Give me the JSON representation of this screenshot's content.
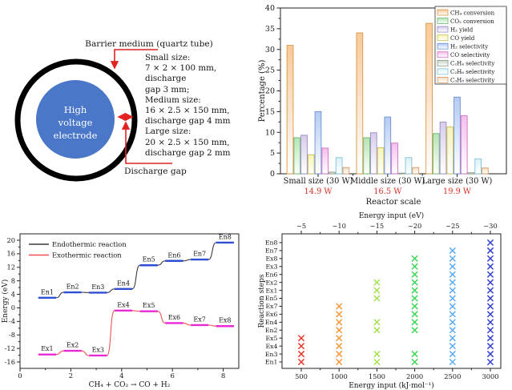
{
  "figure": {
    "background": "#ffffff",
    "annotation_red": "#e32222"
  },
  "diagram": {
    "barrier_label": "Barrier medium (quartz tube)",
    "electrode_lines": [
      "High",
      "voltage",
      "electrode"
    ],
    "discharge_label": "Discharge gap",
    "size_lines": [
      "Small size:",
      "7 × 2 × 100 mm, discharge",
      "gap 3 mm;",
      "Medium size:",
      "16 × 2.5 × 150 mm,",
      "discharge gap 4 mm",
      "Large size:",
      "20 × 2.5 × 150 mm,",
      "discharge gap 2 mm"
    ],
    "electrode_fill": "#4a77c7",
    "ring_color": "#000000",
    "arrow_color": "#e32222"
  },
  "chart_data": [
    {
      "id": "reactor-scale-bars",
      "type": "bar",
      "title": "",
      "ylabel": "Percentage (%)",
      "xlabel": "Reactor scale",
      "ylim": [
        0,
        40
      ],
      "yticks": [
        0,
        5,
        10,
        15,
        20,
        25,
        30,
        35,
        40
      ],
      "grid": false,
      "legend_position": "top-right",
      "categories": [
        "Small size (30 W)",
        "Middle size (30 W)",
        "Large size (30 W)"
      ],
      "category_power_labels": [
        "14.9 W",
        "16.5 W",
        "19.9 W"
      ],
      "power_label_color": "#d93025",
      "series": [
        {
          "name": "CH₄ conversion",
          "fill": "#f9c998",
          "edge": "#d99648",
          "values": [
            31.0,
            34.0,
            36.3
          ]
        },
        {
          "name": "CO₂ conversion",
          "fill": "#b5e3b6",
          "edge": "#6cb86e",
          "values": [
            8.7,
            8.7,
            9.7
          ]
        },
        {
          "name": "H₂ yield",
          "fill": "#d6cdea",
          "edge": "#9b8ac4",
          "values": [
            9.3,
            9.9,
            12.5
          ]
        },
        {
          "name": "CO yield",
          "fill": "#f8f4b5",
          "edge": "#c6bd55",
          "values": [
            4.6,
            6.3,
            11.3
          ]
        },
        {
          "name": "H₂ selectivity",
          "fill": "#b3cbf2",
          "edge": "#6a8fd2",
          "values": [
            15.0,
            13.7,
            18.5
          ]
        },
        {
          "name": "CO selectivity",
          "fill": "#f4bfec",
          "edge": "#cf6ec0",
          "values": [
            6.2,
            7.4,
            14.0
          ]
        },
        {
          "name": "C₂H₄ selectivity",
          "fill": "#c8d2c4",
          "edge": "#8a9a86",
          "values": [
            0.4,
            0.15,
            0.25
          ]
        },
        {
          "name": "C₂H₆ selectivity",
          "fill": "#dbf1f7",
          "edge": "#7fc2d4",
          "values": [
            3.9,
            3.9,
            3.6
          ]
        },
        {
          "name": "C₃H₈ selectivity",
          "fill": "#f8dcc2",
          "edge": "#d89a62",
          "values": [
            1.5,
            1.5,
            1.4
          ]
        }
      ]
    },
    {
      "id": "energy-steps",
      "type": "line",
      "ylabel": "Energy (eV)",
      "xlabel": "CH₄ + CO₂ → CO + H₂",
      "ylim": [
        -17.9,
        21.9
      ],
      "yticks": [
        -16,
        -12,
        -8,
        -4,
        0,
        4,
        8,
        12,
        16,
        20
      ],
      "xticks": [
        0,
        2,
        4,
        6,
        8
      ],
      "grid": false,
      "legend_position": "top-left",
      "series": [
        {
          "name": "Endothermic reaction",
          "line_color": "#3c3c3c",
          "plateau_color": "#2e4fd4",
          "steps": [
            {
              "label": "En1",
              "level": 3.0
            },
            {
              "label": "En2",
              "level": 4.6
            },
            {
              "label": "En3",
              "level": 4.5
            },
            {
              "label": "En4",
              "level": 5.6
            },
            {
              "label": "En5",
              "level": 12.6
            },
            {
              "label": "En6",
              "level": 13.9
            },
            {
              "label": "En7",
              "level": 14.3
            },
            {
              "label": "En8",
              "level": 19.3
            }
          ]
        },
        {
          "name": "Exothermic reaction",
          "line_color": "#f25050",
          "plateau_color": "#e829d8",
          "steps": [
            {
              "label": "Ex1",
              "level": -13.8
            },
            {
              "label": "Ex2",
              "level": -12.7
            },
            {
              "label": "Ex3",
              "level": -14.1
            },
            {
              "label": "Ex4",
              "level": -0.8
            },
            {
              "label": "Ex5",
              "level": -1.0
            },
            {
              "label": "Ex6",
              "level": -4.5
            },
            {
              "label": "Ex7",
              "level": -5.1
            },
            {
              "label": "Ex8",
              "level": -5.4
            }
          ]
        }
      ]
    },
    {
      "id": "energy-input-map",
      "type": "scatter",
      "ylabel": "Reaction steps",
      "xlabel_bottom": "Energy input (kJ·mol⁻¹)",
      "xlabel_top": "Energy input (eV)",
      "xticks_bottom": [
        500,
        1000,
        1500,
        2000,
        2500,
        3000
      ],
      "xticks_top": [
        "~5",
        "~10",
        "~15",
        "~20",
        "~25",
        "~30"
      ],
      "y_categories": [
        "En1",
        "En3",
        "Ex4",
        "Ex5",
        "En2",
        "En4",
        "Ex6",
        "Ex7",
        "En5",
        "Ex1",
        "Ex2",
        "En6",
        "Ex3",
        "Ex8",
        "En7",
        "En8"
      ],
      "marker": "x",
      "columns": [
        {
          "x": 500,
          "color": "#e23a2b",
          "steps": [
            "En1",
            "En3",
            "Ex4",
            "Ex5"
          ]
        },
        {
          "x": 1000,
          "color": "#f29a3d",
          "steps": [
            "En1",
            "En3",
            "Ex4",
            "Ex5",
            "En2",
            "En4",
            "Ex6",
            "Ex7"
          ]
        },
        {
          "x": 1500,
          "color": "#a6e052",
          "steps": [
            "En1",
            "En3",
            "En2",
            "En4",
            "En5",
            "Ex1",
            "Ex2"
          ]
        },
        {
          "x": 2000,
          "color": "#3ed658",
          "steps": [
            "En1",
            "En3",
            "En2",
            "En4",
            "Ex6",
            "Ex7",
            "En5",
            "Ex1",
            "Ex2",
            "En6",
            "Ex3",
            "Ex8"
          ]
        },
        {
          "x": 2500,
          "color": "#5cacf2",
          "steps": [
            "En1",
            "En3",
            "Ex4",
            "Ex5",
            "En2",
            "En4",
            "Ex6",
            "Ex7",
            "En5",
            "Ex1",
            "Ex2",
            "En6",
            "Ex3",
            "Ex8",
            "En7"
          ]
        },
        {
          "x": 3000,
          "color": "#3742cc",
          "steps": [
            "En1",
            "En3",
            "Ex4",
            "Ex5",
            "En2",
            "En4",
            "Ex6",
            "Ex7",
            "En5",
            "Ex1",
            "Ex2",
            "En6",
            "Ex3",
            "Ex8",
            "En7",
            "En8"
          ]
        }
      ]
    }
  ]
}
